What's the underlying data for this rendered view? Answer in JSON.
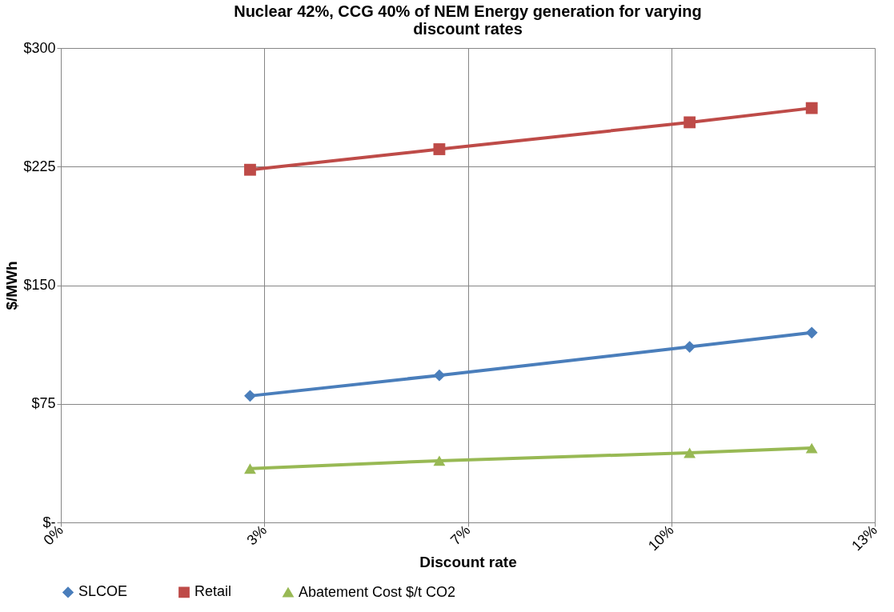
{
  "chart_data": {
    "type": "line",
    "title": "Nuclear 42%, CCG 40% of NEM Energy generation for varying discount rates",
    "xlabel": "Discount rate",
    "ylabel": "$/MWh",
    "x": [
      3.1,
      6.2,
      10.3,
      12.3
    ],
    "series": [
      {
        "name": "SLCOE",
        "color": "#4a7ebb",
        "marker": "diamond",
        "values": [
          80,
          93,
          111,
          120
        ]
      },
      {
        "name": "Retail",
        "color": "#be4b48",
        "marker": "square",
        "values": [
          223,
          236,
          253,
          262
        ]
      },
      {
        "name": "Abatement Cost $/t CO2",
        "color": "#98b954",
        "marker": "triangle",
        "values": [
          34,
          39,
          44,
          47
        ]
      }
    ],
    "xlim": [
      0,
      13.333
    ],
    "xticks": [
      {
        "value": 0,
        "label": "0%"
      },
      {
        "value": 3.333,
        "label": "3%"
      },
      {
        "value": 6.667,
        "label": "7%"
      },
      {
        "value": 10,
        "label": "10%"
      },
      {
        "value": 13.333,
        "label": "13%"
      }
    ],
    "ylim": [
      0,
      300
    ],
    "yticks": [
      {
        "value": 0,
        "label": "$-"
      },
      {
        "value": 75,
        "label": "$75"
      },
      {
        "value": 150,
        "label": "$150"
      },
      {
        "value": 225,
        "label": "$225"
      },
      {
        "value": 300,
        "label": "$300"
      }
    ],
    "grid": true,
    "legend": "bottom",
    "line_style": "solid"
  }
}
